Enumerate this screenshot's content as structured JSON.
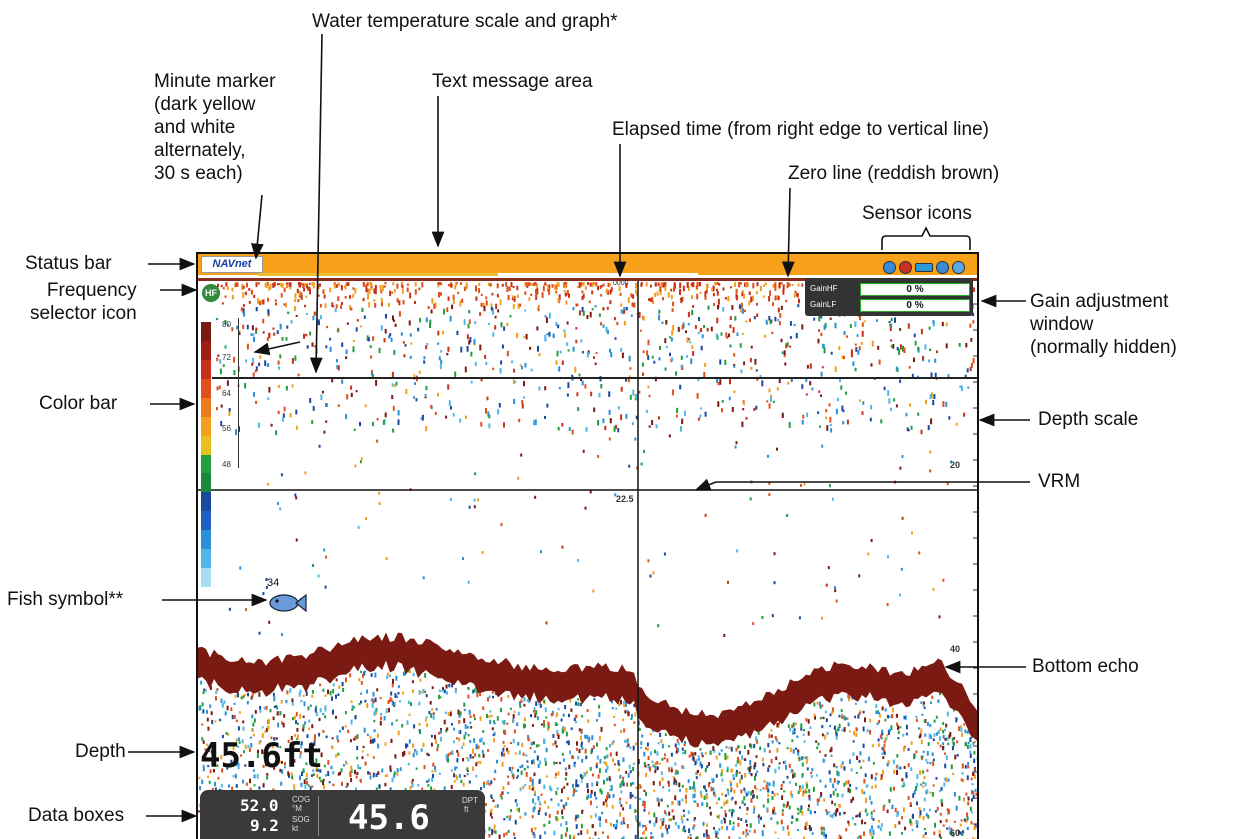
{
  "callouts": {
    "water_temp": "Water temperature scale and graph*",
    "minute_marker_lines": [
      "Minute marker",
      "(dark yellow",
      "and white",
      "alternately,",
      "30 s each)"
    ],
    "text_message": "Text message area",
    "elapsed_time": "Elapsed time (from right edge to vertical line)",
    "zero_line": "Zero line (reddish brown)",
    "sensor_icons": "Sensor icons",
    "status_bar": "Status bar",
    "frequency_selector_lines": [
      "Frequency",
      "selector icon"
    ],
    "gain_window_lines": [
      "Gain adjustment",
      "window",
      "(normally hidden)"
    ],
    "color_bar": "Color bar",
    "depth_scale": "Depth scale",
    "vrm": "VRM",
    "fish_symbol": "Fish symbol**",
    "bottom_echo": "Bottom echo",
    "depth": "Depth",
    "data_boxes": "Data boxes"
  },
  "screen": {
    "logo": "NAVnet",
    "top_marker": "0000",
    "frequency_icon": "HF",
    "gain": [
      {
        "label": "GainHF",
        "value": "0 %",
        "color": "#1fbf3a"
      },
      {
        "label": "GainLF",
        "value": "0 %",
        "color": "#555555"
      }
    ],
    "temp_ticks": [
      "80",
      "72",
      "64",
      "56",
      "48"
    ],
    "depth_ticks": [
      "20",
      "40",
      "60"
    ],
    "vrm_value": "22.5",
    "fish_depth": "34",
    "depth_readout": "45.6ft",
    "databox": {
      "cog_value": "52.0",
      "cog_label": "COG",
      "cog_unit": "°M",
      "sog_value": "9.2",
      "sog_label": "SOG",
      "sog_unit": "kt",
      "dpt_value": "45.6",
      "dpt_label": "DPT",
      "dpt_unit": "ft"
    }
  },
  "colors": {
    "status_bar": "#f7a11a",
    "zero_line": "#8a2a1a",
    "bottom_echo": "#7a1a12",
    "colorbar": [
      "#7a1a12",
      "#9e1e14",
      "#c8301a",
      "#e0501c",
      "#ee7a1e",
      "#f2a01e",
      "#e8c020",
      "#20a040",
      "#1a8a3a",
      "#1a4aa0",
      "#2060c0",
      "#2a90d8",
      "#50b8e8",
      "#a8dcef"
    ]
  },
  "sensor_icon_colors": [
    "#3a8ad8",
    "#c83020",
    "#2a9ad8",
    "#3a8ad8",
    "#5aa8e8"
  ]
}
